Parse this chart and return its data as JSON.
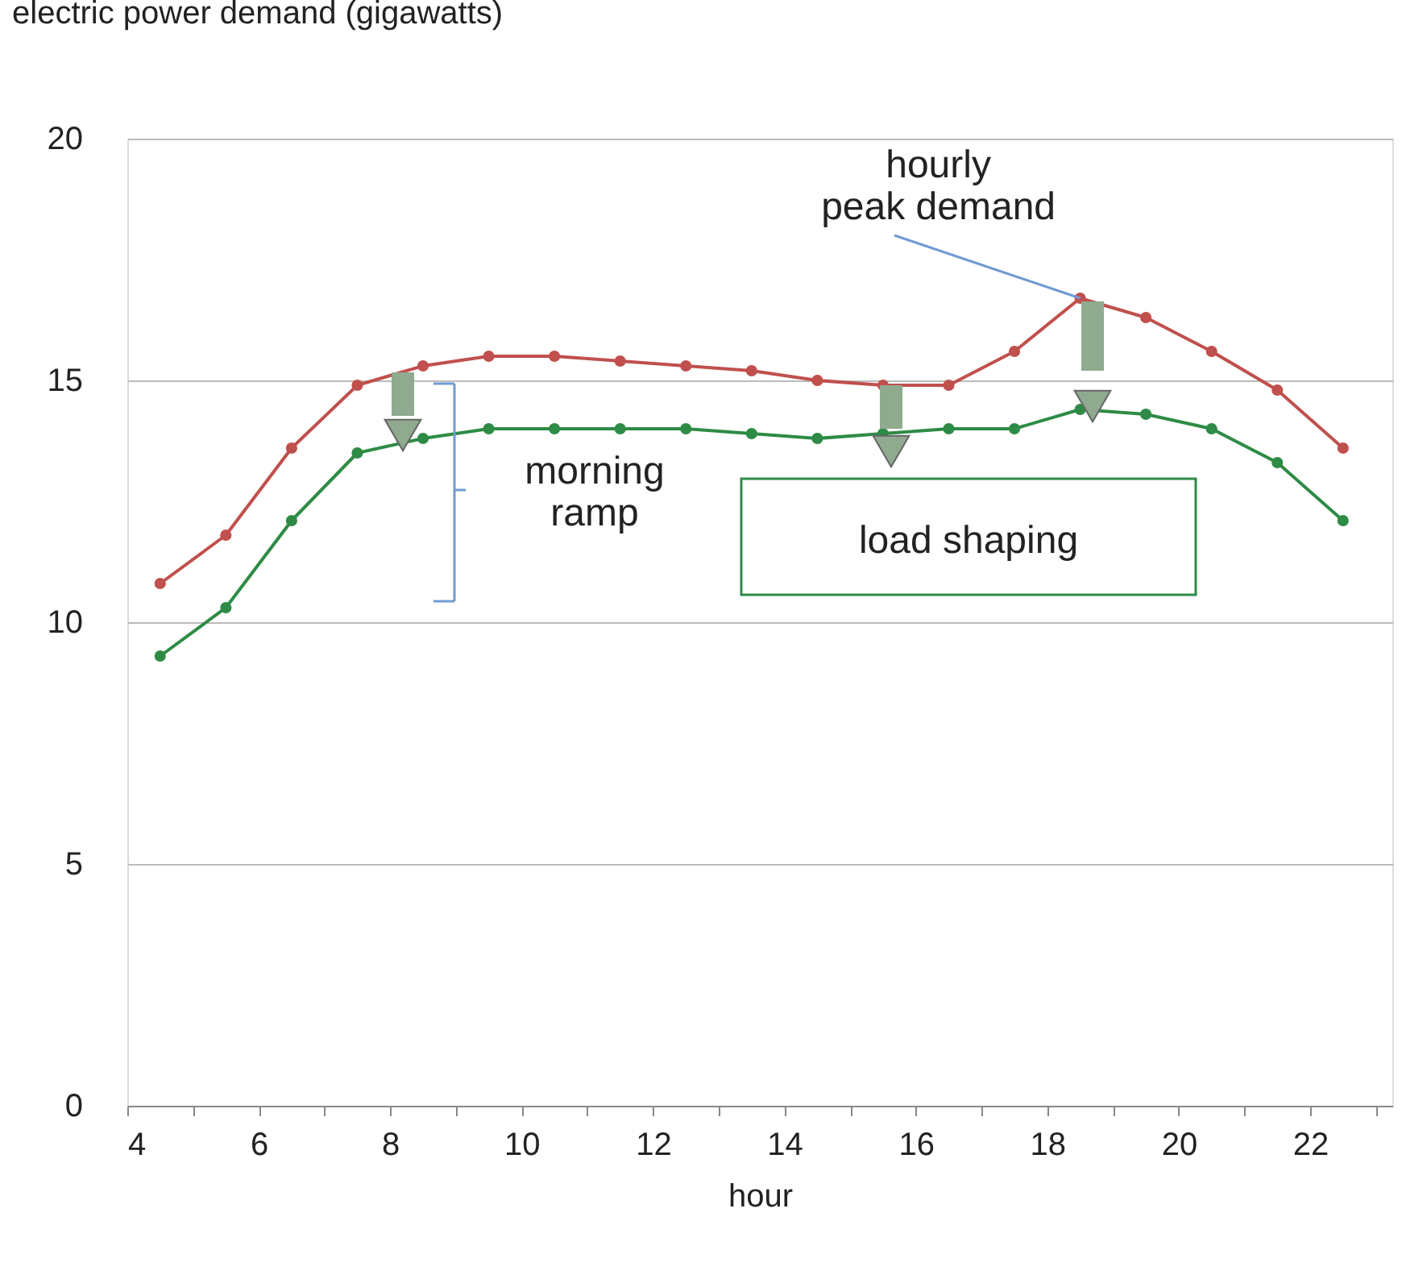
{
  "chart_data": {
    "type": "line",
    "ylabel": "electric power demand (gigawatts)",
    "xlabel": "hour",
    "x": [
      4.5,
      5.5,
      6.5,
      7.5,
      8.5,
      9.5,
      10.5,
      11.5,
      12.5,
      13.5,
      14.5,
      15.5,
      16.5,
      17.5,
      18.5,
      19.5,
      20.5,
      21.5,
      22.5
    ],
    "series": [
      {
        "color": "#c0504d",
        "values": [
          10.8,
          11.8,
          13.6,
          14.9,
          15.3,
          15.5,
          15.5,
          15.4,
          15.3,
          15.2,
          15.0,
          14.9,
          14.9,
          15.6,
          16.7,
          16.3,
          15.6,
          14.8,
          13.6
        ]
      },
      {
        "color": "#2e8b45",
        "values": [
          9.3,
          10.3,
          12.1,
          13.5,
          13.8,
          14.0,
          14.0,
          14.0,
          14.0,
          13.9,
          13.8,
          13.9,
          14.0,
          14.0,
          14.4,
          14.3,
          14.0,
          13.3,
          12.1
        ]
      }
    ],
    "xlim": [
      4,
      23.25
    ],
    "ylim": [
      0,
      20
    ],
    "xticks": [
      4,
      {
        "value": 5,
        "label": null
      },
      6,
      {
        "value": 7,
        "label": null
      },
      8,
      {
        "value": 9,
        "label": null
      },
      10,
      {
        "value": 11,
        "label": null
      },
      12,
      {
        "value": 13,
        "label": null
      },
      14,
      {
        "value": 15,
        "label": null
      },
      16,
      {
        "value": 17,
        "label": null
      },
      18,
      {
        "value": 19,
        "label": null
      },
      20,
      {
        "value": 21,
        "label": null
      },
      22,
      {
        "value": 23,
        "label": null
      }
    ],
    "yticks": [
      0,
      5,
      10,
      15,
      20
    ],
    "grid": "y",
    "marker": "circle",
    "line_style": "solid",
    "legend": false,
    "annotations": [
      {
        "text": "hourly\npeak demand",
        "x": 18.5,
        "y": 16.7
      },
      "morning\nramp",
      "load shaping"
    ]
  }
}
